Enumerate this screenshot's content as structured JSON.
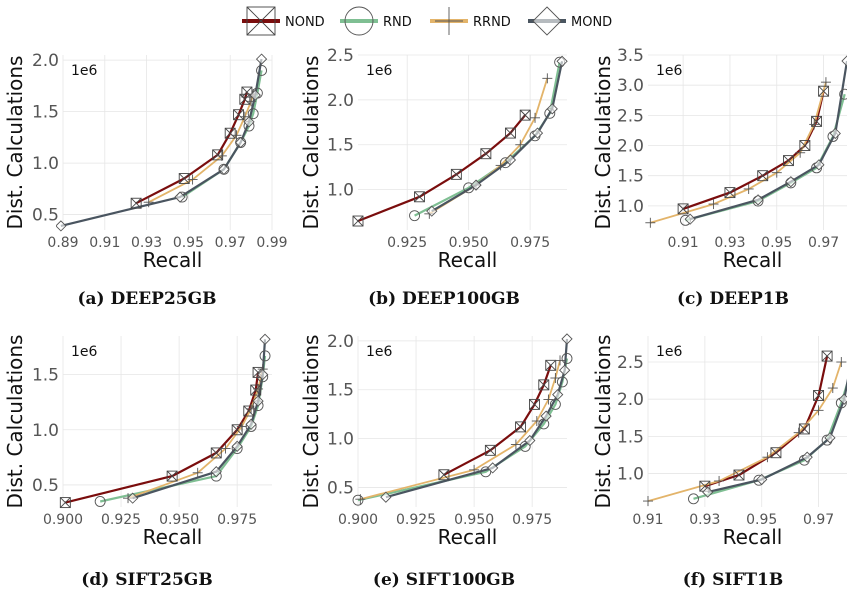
{
  "legend": [
    {
      "name": "NOND",
      "color": "#7a0d0d",
      "marker": "xbox"
    },
    {
      "name": "RND",
      "color": "#7fbf93",
      "marker": "circle"
    },
    {
      "name": "RRND",
      "color": "#e3b46a",
      "marker": "plus"
    },
    {
      "name": "MOND",
      "color": "#4a5560",
      "marker": "diamond"
    }
  ],
  "chart_data": [
    {
      "type": "line",
      "caption": "(a) DEEP25GB",
      "xlabel": "Recall",
      "ylabel": "Dist. Calculations",
      "multiplier": "1e6",
      "xlim": [
        0.89,
        0.99
      ],
      "ylim": [
        0.35,
        2.05
      ],
      "xticks": [
        0.89,
        0.91,
        0.93,
        0.95,
        0.97,
        0.99
      ],
      "xtick_labels": [
        "0.89",
        "0.91",
        "0.93",
        "0.95",
        "0.97",
        "0.99"
      ],
      "yticks": [
        0.5,
        1.0,
        1.5,
        2.0
      ],
      "ytick_labels": [
        "0.5",
        "1.0",
        "1.5",
        "2.0"
      ],
      "series": [
        {
          "name": "NOND",
          "x": [
            0.925,
            0.948,
            0.964,
            0.97,
            0.974,
            0.977,
            0.978
          ],
          "y": [
            0.61,
            0.85,
            1.08,
            1.29,
            1.47,
            1.62,
            1.69
          ]
        },
        {
          "name": "RND",
          "x": [
            0.947,
            0.967,
            0.975,
            0.979,
            0.981,
            0.983,
            0.985
          ],
          "y": [
            0.67,
            0.94,
            1.2,
            1.36,
            1.48,
            1.68,
            1.9
          ]
        },
        {
          "name": "RRND",
          "x": [
            0.931,
            0.952,
            0.966,
            0.973,
            0.977,
            0.98,
            0.981
          ],
          "y": [
            0.62,
            0.84,
            1.07,
            1.27,
            1.45,
            1.6,
            1.67
          ]
        },
        {
          "name": "MOND",
          "x": [
            0.889,
            0.946,
            0.967,
            0.975,
            0.979,
            0.982,
            0.985
          ],
          "y": [
            0.39,
            0.67,
            0.94,
            1.2,
            1.4,
            1.66,
            2.01
          ]
        }
      ]
    },
    {
      "type": "line",
      "caption": "(b) DEEP100GB",
      "xlabel": "Recall",
      "ylabel": "Dist. Calculations",
      "multiplier": "1e6",
      "xlim": [
        0.905,
        0.99
      ],
      "ylim": [
        0.55,
        2.5
      ],
      "xticks": [
        0.925,
        0.95,
        0.975
      ],
      "xtick_labels": [
        "0.925",
        "0.950",
        "0.975"
      ],
      "yticks": [
        1.0,
        1.5,
        2.0,
        2.5
      ],
      "ytick_labels": [
        "1.0",
        "1.5",
        "2.0",
        "2.5"
      ],
      "series": [
        {
          "name": "NOND",
          "x": [
            0.905,
            0.93,
            0.945,
            0.957,
            0.967,
            0.973
          ],
          "y": [
            0.65,
            0.92,
            1.17,
            1.4,
            1.63,
            1.83
          ]
        },
        {
          "name": "RND",
          "x": [
            0.928,
            0.95,
            0.965,
            0.977,
            0.983,
            0.987
          ],
          "y": [
            0.71,
            1.02,
            1.3,
            1.6,
            1.85,
            2.42
          ]
        },
        {
          "name": "RRND",
          "x": [
            0.934,
            0.953,
            0.963,
            0.971,
            0.977,
            0.982
          ],
          "y": [
            0.73,
            1.05,
            1.27,
            1.5,
            1.8,
            2.24
          ]
        },
        {
          "name": "MOND",
          "x": [
            0.935,
            0.953,
            0.967,
            0.978,
            0.984,
            0.988
          ],
          "y": [
            0.76,
            1.05,
            1.33,
            1.63,
            1.9,
            2.43
          ]
        }
      ]
    },
    {
      "type": "line",
      "caption": "(c) DEEP1B",
      "xlabel": "Recall",
      "ylabel": "Dist. Calculations",
      "multiplier": "1e6",
      "xlim": [
        0.895,
        0.98
      ],
      "ylim": [
        0.6,
        3.5
      ],
      "xticks": [
        0.91,
        0.93,
        0.95,
        0.97
      ],
      "xtick_labels": [
        "0.91",
        "0.93",
        "0.95",
        "0.97"
      ],
      "yticks": [
        1.0,
        1.5,
        2.0,
        2.5,
        3.0,
        3.5
      ],
      "ytick_labels": [
        "1.0",
        "1.5",
        "2.0",
        "2.5",
        "3.0",
        "3.5"
      ],
      "series": [
        {
          "name": "NOND",
          "x": [
            0.91,
            0.93,
            0.944,
            0.955,
            0.962,
            0.967,
            0.97
          ],
          "y": [
            0.95,
            1.22,
            1.5,
            1.75,
            2.0,
            2.4,
            2.9
          ]
        },
        {
          "name": "RND",
          "x": [
            0.911,
            0.942,
            0.956,
            0.967,
            0.974,
            0.979
          ],
          "y": [
            0.76,
            1.08,
            1.38,
            1.63,
            2.15,
            2.85
          ]
        },
        {
          "name": "RRND",
          "x": [
            0.896,
            0.923,
            0.938,
            0.95,
            0.96,
            0.966,
            0.971
          ],
          "y": [
            0.72,
            1.03,
            1.28,
            1.55,
            1.88,
            2.35,
            3.05
          ]
        },
        {
          "name": "MOND",
          "x": [
            0.913,
            0.942,
            0.956,
            0.968,
            0.975,
            0.98
          ],
          "y": [
            0.78,
            1.1,
            1.4,
            1.68,
            2.2,
            3.4
          ]
        }
      ]
    },
    {
      "type": "line",
      "caption": "(d) SIFT25GB",
      "xlabel": "Recall",
      "ylabel": "Dist. Calculations",
      "multiplier": "1e6",
      "xlim": [
        0.9,
        0.99
      ],
      "ylim": [
        0.3,
        1.85
      ],
      "xticks": [
        0.9,
        0.925,
        0.95,
        0.975
      ],
      "xtick_labels": [
        "0.900",
        "0.925",
        "0.950",
        "0.975"
      ],
      "yticks": [
        0.5,
        1.0,
        1.5
      ],
      "ytick_labels": [
        "0.5",
        "1.0",
        "1.5"
      ],
      "series": [
        {
          "name": "NOND",
          "x": [
            0.901,
            0.947,
            0.966,
            0.975,
            0.98,
            0.983,
            0.984
          ],
          "y": [
            0.34,
            0.58,
            0.79,
            1.0,
            1.17,
            1.36,
            1.52
          ]
        },
        {
          "name": "RND",
          "x": [
            0.916,
            0.966,
            0.975,
            0.981,
            0.984,
            0.986,
            0.987
          ],
          "y": [
            0.35,
            0.58,
            0.83,
            1.03,
            1.22,
            1.48,
            1.67
          ]
        },
        {
          "name": "RRND",
          "x": [
            0.928,
            0.958,
            0.97,
            0.977,
            0.981,
            0.984,
            0.986
          ],
          "y": [
            0.38,
            0.61,
            0.83,
            1.03,
            1.19,
            1.37,
            1.55
          ]
        },
        {
          "name": "MOND",
          "x": [
            0.93,
            0.966,
            0.975,
            0.981,
            0.984,
            0.986,
            0.987
          ],
          "y": [
            0.38,
            0.62,
            0.85,
            1.05,
            1.26,
            1.5,
            1.82
          ]
        }
      ]
    },
    {
      "type": "line",
      "caption": "(e) SIFT100GB",
      "xlabel": "Recall",
      "ylabel": "Dist. Calculations",
      "multiplier": "1e6",
      "xlim": [
        0.9,
        0.99
      ],
      "ylim": [
        0.3,
        2.05
      ],
      "xticks": [
        0.9,
        0.925,
        0.95,
        0.975
      ],
      "xtick_labels": [
        "0.900",
        "0.925",
        "0.950",
        "0.975"
      ],
      "yticks": [
        0.5,
        1.0,
        1.5,
        2.0
      ],
      "ytick_labels": [
        "0.5",
        "1.0",
        "1.5",
        "2.0"
      ],
      "series": [
        {
          "name": "NOND",
          "x": [
            0.937,
            0.957,
            0.97,
            0.976,
            0.98,
            0.983
          ],
          "y": [
            0.63,
            0.88,
            1.12,
            1.35,
            1.55,
            1.75
          ]
        },
        {
          "name": "RND",
          "x": [
            0.9,
            0.955,
            0.972,
            0.98,
            0.985,
            0.988,
            0.99
          ],
          "y": [
            0.37,
            0.66,
            0.92,
            1.15,
            1.35,
            1.58,
            1.82
          ]
        },
        {
          "name": "RRND",
          "x": [
            0.901,
            0.95,
            0.968,
            0.977,
            0.982,
            0.985,
            0.987
          ],
          "y": [
            0.38,
            0.68,
            0.94,
            1.18,
            1.4,
            1.62,
            1.8
          ]
        },
        {
          "name": "MOND",
          "x": [
            0.912,
            0.958,
            0.974,
            0.981,
            0.986,
            0.989,
            0.99
          ],
          "y": [
            0.4,
            0.7,
            0.98,
            1.23,
            1.45,
            1.7,
            2.02
          ]
        }
      ]
    },
    {
      "type": "line",
      "caption": "(f) SIFT1B",
      "xlabel": "Recall",
      "ylabel": "Dist. Calculations",
      "multiplier": "1e6",
      "xlim": [
        0.91,
        0.98
      ],
      "ylim": [
        0.55,
        2.85
      ],
      "xticks": [
        0.91,
        0.93,
        0.95,
        0.97
      ],
      "xtick_labels": [
        "0.91",
        "0.93",
        "0.95",
        "0.97"
      ],
      "yticks": [
        1.0,
        1.5,
        2.0,
        2.5
      ],
      "ytick_labels": [
        "1.0",
        "1.5",
        "2.0",
        "2.5"
      ],
      "series": [
        {
          "name": "NOND",
          "x": [
            0.93,
            0.942,
            0.955,
            0.965,
            0.97,
            0.973
          ],
          "y": [
            0.83,
            0.98,
            1.28,
            1.6,
            2.05,
            2.58
          ]
        },
        {
          "name": "RND",
          "x": [
            0.926,
            0.949,
            0.965,
            0.973,
            0.978,
            0.982
          ],
          "y": [
            0.66,
            0.91,
            1.18,
            1.45,
            1.95,
            2.45
          ]
        },
        {
          "name": "RRND",
          "x": [
            0.91,
            0.935,
            0.952,
            0.963,
            0.97,
            0.975,
            0.978
          ],
          "y": [
            0.63,
            0.9,
            1.22,
            1.55,
            1.85,
            2.15,
            2.5
          ]
        },
        {
          "name": "MOND",
          "x": [
            0.931,
            0.95,
            0.966,
            0.974,
            0.979,
            0.983
          ],
          "y": [
            0.75,
            0.92,
            1.22,
            1.48,
            2.0,
            2.8
          ]
        }
      ]
    }
  ]
}
